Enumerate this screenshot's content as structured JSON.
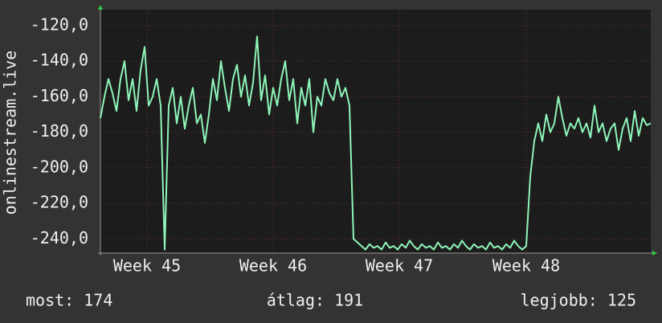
{
  "chart_data": {
    "type": "line",
    "ylabel": "onlinestream.live",
    "footer": [
      "most: 174",
      "átlag: 191",
      "legjobb: 125"
    ],
    "x": [
      0,
      1,
      2,
      3,
      4,
      5,
      6,
      7,
      8,
      9,
      10,
      11,
      12,
      13,
      14,
      15,
      16,
      17,
      18,
      19,
      20,
      21,
      22,
      23,
      24,
      25,
      26,
      27,
      28,
      29,
      30,
      31,
      32,
      33,
      34,
      35,
      36,
      37,
      38,
      39,
      40,
      41,
      42,
      43,
      44,
      45,
      46,
      47,
      48,
      49,
      50,
      51,
      52,
      53,
      54,
      55,
      56,
      57,
      58,
      59,
      60,
      61,
      62,
      63,
      64,
      65,
      66,
      67,
      68,
      69,
      70,
      71,
      72,
      73,
      74,
      75,
      76,
      77,
      78,
      79,
      80,
      81,
      82,
      83,
      84,
      85,
      86,
      87,
      88,
      89,
      90,
      91,
      92,
      93,
      94,
      95,
      96,
      97,
      98,
      99,
      100,
      101,
      102,
      103,
      104,
      105,
      106,
      107,
      108,
      109,
      110,
      111,
      112,
      113,
      114,
      115,
      116,
      117,
      118,
      119,
      120,
      121,
      122,
      123,
      124,
      125,
      126,
      127,
      128,
      129,
      130,
      131,
      132,
      133,
      134,
      135,
      136,
      137
    ],
    "series": [
      {
        "color": "#8ef5b8",
        "values": [
          -172,
          -160,
          -150,
          -158,
          -168,
          -150,
          -140,
          -162,
          -150,
          -168,
          -145,
          -132,
          -165,
          -160,
          -150,
          -165,
          -246,
          -165,
          -155,
          -175,
          -160,
          -178,
          -165,
          -155,
          -175,
          -170,
          -186,
          -170,
          -150,
          -162,
          -140,
          -155,
          -168,
          -150,
          -142,
          -160,
          -148,
          -165,
          -152,
          -126,
          -162,
          -148,
          -170,
          -155,
          -165,
          -150,
          -140,
          -162,
          -150,
          -175,
          -155,
          -165,
          -150,
          -180,
          -160,
          -165,
          -150,
          -158,
          -162,
          -150,
          -160,
          -155,
          -165,
          -240,
          -242,
          -244,
          -246,
          -243,
          -245,
          -244,
          -246,
          -242,
          -245,
          -244,
          -246,
          -243,
          -245,
          -241,
          -244,
          -246,
          -243,
          -245,
          -244,
          -246,
          -242,
          -245,
          -244,
          -246,
          -243,
          -245,
          -241,
          -244,
          -246,
          -243,
          -245,
          -244,
          -246,
          -242,
          -245,
          -244,
          -246,
          -243,
          -245,
          -241,
          -244,
          -246,
          -244,
          -205,
          -185,
          -175,
          -185,
          -170,
          -180,
          -175,
          -160,
          -172,
          -182,
          -175,
          -178,
          -172,
          -180,
          -175,
          -183,
          -165,
          -180,
          -175,
          -185,
          -178,
          -175,
          -190,
          -178,
          -172,
          -185,
          -168,
          -182,
          -172,
          -176,
          -175
        ]
      }
    ],
    "xlim": [
      0,
      137
    ],
    "xticks": [
      {
        "value": 11.6,
        "label": "Week 45"
      },
      {
        "value": 43,
        "label": "Week 46"
      },
      {
        "value": 74.4,
        "label": "Week 47"
      },
      {
        "value": 106,
        "label": "Week 48"
      }
    ],
    "ylim": [
      -248,
      -111
    ],
    "yticks": [
      {
        "value": -240,
        "label": "-240,0"
      },
      {
        "value": -220,
        "label": "-220,0"
      },
      {
        "value": -200,
        "label": "-200,0"
      },
      {
        "value": -180,
        "label": "-180,0"
      },
      {
        "value": -160,
        "label": "-160,0"
      },
      {
        "value": -140,
        "label": "-140,0"
      },
      {
        "value": -120,
        "label": "-120,0"
      }
    ],
    "grid": true
  }
}
